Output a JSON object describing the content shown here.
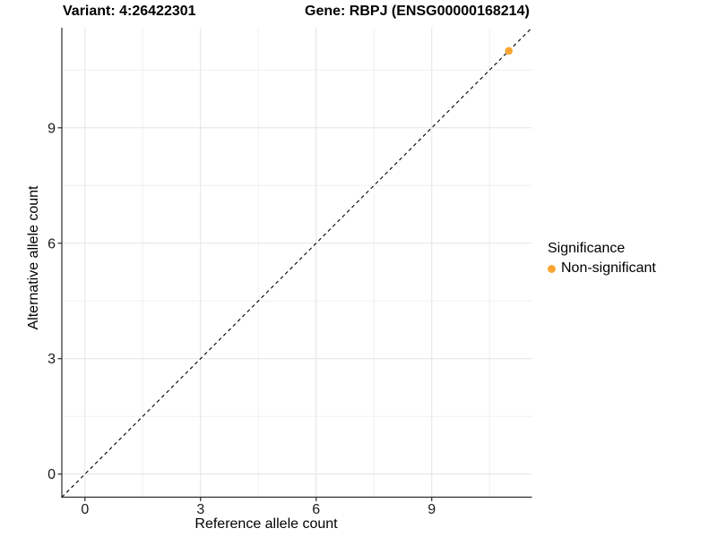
{
  "titles": {
    "variant": "Variant: 4:26422301",
    "gene": "Gene: RBPJ (ENSG00000168214)"
  },
  "chart_data": {
    "type": "scatter",
    "title": "Variant: 4:26422301 — Gene: RBPJ (ENSG00000168214)",
    "xlabel": "Reference allele count",
    "ylabel": "Alternative allele count",
    "xlim": [
      -0.6,
      11.6
    ],
    "ylim": [
      -0.6,
      11.6
    ],
    "x_ticks": [
      0,
      3,
      6,
      9
    ],
    "y_ticks": [
      0,
      3,
      6,
      9
    ],
    "x_minor_ticks": [
      1.5,
      4.5,
      7.5,
      10.5
    ],
    "y_minor_ticks": [
      1.5,
      4.5,
      7.5,
      10.5
    ],
    "grid": true,
    "series": [
      {
        "name": "Non-significant",
        "color": "#FAA532",
        "points": [
          {
            "x": 11,
            "y": 11
          }
        ]
      }
    ],
    "reference_line": {
      "type": "identity",
      "slope": 1,
      "intercept": 0,
      "style": "dashed",
      "color": "#000000"
    },
    "legend": {
      "title": "Significance",
      "position": "right",
      "entries": [
        {
          "label": "Non-significant",
          "color": "#FAA532"
        }
      ]
    },
    "style": {
      "background": "#ffffff",
      "axis_line_color": "#2b2b2b",
      "major_grid_color": "#e4e4e4",
      "minor_grid_color": "#f0f0f0",
      "tick_label_color": "#1a1a1a",
      "point_radius": 4.3
    }
  }
}
